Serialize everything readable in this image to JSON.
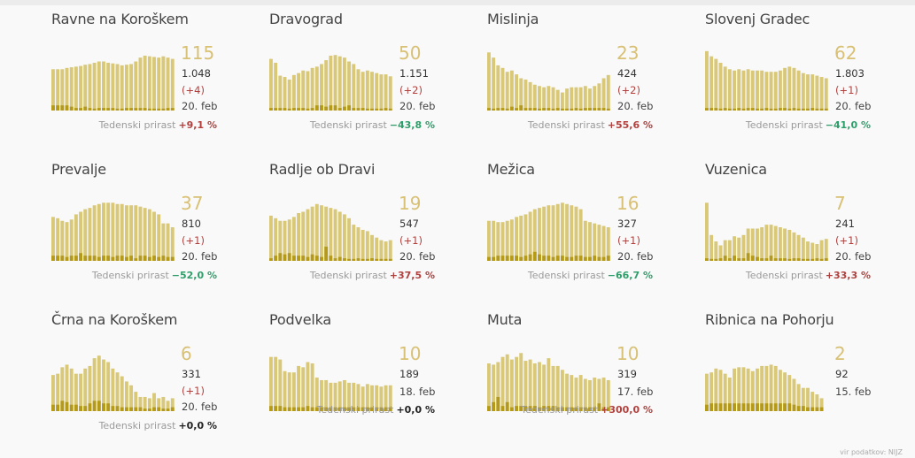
{
  "footnote": "vir podatkov: NIJZ",
  "colors": {
    "bar": "#d8c878",
    "bar_dark": "#b59a1a",
    "number": "#d8c074",
    "up": "#b0413e",
    "down": "#2e9e6a"
  },
  "chart_data": [
    {
      "type": "bar",
      "title": "Ravne na Koroškem",
      "active": "115",
      "total": "1.048",
      "daily": "(+4)",
      "date": "20. feb",
      "weekly_label": "Tedenski prirast",
      "weekly": "+9,1 %",
      "trend": "pos",
      "series": [
        {
          "name": "active",
          "values": [
            64,
            64,
            64,
            66,
            67,
            68,
            69,
            71,
            72,
            74,
            76,
            76,
            74,
            73,
            72,
            70,
            71,
            72,
            76,
            82,
            85,
            84,
            83,
            82,
            84,
            82,
            80
          ]
        },
        {
          "name": "new",
          "values": [
            8,
            8,
            8,
            8,
            6,
            4,
            4,
            6,
            4,
            3,
            4,
            4,
            4,
            4,
            3,
            3,
            4,
            4,
            4,
            4,
            4,
            3,
            3,
            3,
            3,
            4,
            4
          ]
        }
      ]
    },
    {
      "type": "bar",
      "title": "Dravograd",
      "active": "50",
      "total": "1.151",
      "daily": "(+2)",
      "date": "20. feb",
      "weekly_label": "Tedenski prirast",
      "weekly": "−43,8 %",
      "trend": "neg",
      "series": [
        {
          "name": "active",
          "values": [
            80,
            74,
            54,
            52,
            48,
            55,
            58,
            62,
            61,
            66,
            68,
            72,
            78,
            85,
            86,
            84,
            82,
            76,
            72,
            64,
            60,
            62,
            60,
            58,
            56,
            56,
            53
          ]
        },
        {
          "name": "new",
          "values": [
            4,
            4,
            4,
            4,
            3,
            4,
            4,
            4,
            3,
            4,
            8,
            8,
            6,
            8,
            8,
            4,
            6,
            8,
            4,
            4,
            4,
            3,
            3,
            3,
            3,
            4,
            3
          ]
        }
      ]
    },
    {
      "type": "bar",
      "title": "Mislinja",
      "active": "23",
      "total": "424",
      "daily": "(+2)",
      "date": "20. feb",
      "weekly_label": "Tedenski prirast",
      "weekly": "+55,6 %",
      "trend": "pos",
      "series": [
        {
          "name": "active",
          "values": [
            90,
            82,
            70,
            66,
            60,
            62,
            56,
            50,
            48,
            44,
            40,
            38,
            36,
            38,
            36,
            32,
            28,
            34,
            36,
            36,
            36,
            38,
            34,
            38,
            42,
            50,
            55
          ]
        },
        {
          "name": "new",
          "values": [
            4,
            3,
            4,
            4,
            3,
            6,
            4,
            8,
            4,
            4,
            4,
            3,
            4,
            4,
            3,
            4,
            3,
            3,
            3,
            4,
            3,
            4,
            4,
            4,
            4,
            4,
            3
          ]
        }
      ]
    },
    {
      "type": "bar",
      "title": "Slovenj Gradec",
      "active": "62",
      "total": "1.803",
      "daily": "(+1)",
      "date": "20. feb",
      "weekly_label": "Tedenski prirast",
      "weekly": "−41,0 %",
      "trend": "neg",
      "series": [
        {
          "name": "active",
          "values": [
            92,
            84,
            80,
            74,
            68,
            64,
            62,
            64,
            62,
            64,
            62,
            62,
            62,
            60,
            60,
            60,
            62,
            66,
            68,
            66,
            62,
            58,
            56,
            56,
            54,
            52,
            50
          ]
        },
        {
          "name": "new",
          "values": [
            4,
            4,
            4,
            3,
            4,
            3,
            3,
            4,
            3,
            4,
            4,
            3,
            3,
            4,
            3,
            3,
            4,
            4,
            3,
            4,
            3,
            3,
            3,
            4,
            3,
            3,
            3
          ]
        }
      ]
    },
    {
      "type": "bar",
      "title": "Prevalje",
      "active": "37",
      "total": "810",
      "daily": "(+1)",
      "date": "20. feb",
      "weekly_label": "Tedenski prirast",
      "weekly": "−52,0 %",
      "trend": "neg",
      "series": [
        {
          "name": "active",
          "values": [
            68,
            66,
            62,
            60,
            64,
            72,
            76,
            80,
            82,
            86,
            88,
            90,
            90,
            90,
            88,
            88,
            86,
            86,
            86,
            84,
            82,
            80,
            76,
            72,
            58,
            58,
            52
          ]
        },
        {
          "name": "new",
          "values": [
            8,
            8,
            8,
            6,
            8,
            8,
            12,
            8,
            8,
            8,
            6,
            8,
            8,
            6,
            8,
            8,
            6,
            8,
            4,
            8,
            8,
            6,
            8,
            6,
            8,
            6,
            6
          ]
        }
      ]
    },
    {
      "type": "bar",
      "title": "Radlje ob Dravi",
      "active": "19",
      "total": "547",
      "daily": "(+1)",
      "date": "20. feb",
      "weekly_label": "Tedenski prirast",
      "weekly": "+37,5 %",
      "trend": "pos",
      "series": [
        {
          "name": "active",
          "values": [
            70,
            66,
            62,
            62,
            64,
            68,
            74,
            76,
            80,
            84,
            88,
            86,
            84,
            82,
            80,
            76,
            72,
            66,
            56,
            52,
            48,
            46,
            40,
            36,
            32,
            30,
            32
          ]
        },
        {
          "name": "new",
          "values": [
            4,
            8,
            12,
            10,
            12,
            8,
            8,
            8,
            6,
            10,
            8,
            6,
            22,
            8,
            4,
            6,
            4,
            3,
            3,
            4,
            3,
            3,
            4,
            3,
            3,
            3,
            3
          ]
        }
      ]
    },
    {
      "type": "bar",
      "title": "Mežica",
      "active": "16",
      "total": "327",
      "daily": "(+1)",
      "date": "20. feb",
      "weekly_label": "Tedenski prirast",
      "weekly": "−66,7 %",
      "trend": "neg",
      "series": [
        {
          "name": "active",
          "values": [
            62,
            62,
            60,
            60,
            62,
            64,
            68,
            70,
            72,
            76,
            80,
            82,
            84,
            86,
            86,
            88,
            90,
            88,
            86,
            84,
            80,
            62,
            60,
            58,
            56,
            54,
            52
          ]
        },
        {
          "name": "new",
          "values": [
            6,
            6,
            8,
            8,
            8,
            8,
            8,
            6,
            8,
            10,
            14,
            10,
            8,
            8,
            6,
            8,
            8,
            6,
            6,
            8,
            8,
            6,
            6,
            8,
            6,
            6,
            8
          ]
        }
      ]
    },
    {
      "type": "bar",
      "title": "Vuzenica",
      "active": "7",
      "total": "241",
      "daily": "(+1)",
      "date": "20. feb",
      "weekly_label": "Tedenski prirast",
      "weekly": "+33,3 %",
      "trend": "pos",
      "series": [
        {
          "name": "active",
          "values": [
            90,
            40,
            30,
            24,
            32,
            32,
            38,
            36,
            40,
            50,
            50,
            50,
            52,
            56,
            56,
            54,
            52,
            50,
            48,
            44,
            40,
            36,
            30,
            28,
            26,
            32,
            34
          ]
        },
        {
          "name": "new",
          "values": [
            4,
            3,
            3,
            4,
            8,
            4,
            8,
            4,
            4,
            12,
            8,
            6,
            4,
            4,
            8,
            4,
            4,
            4,
            3,
            4,
            4,
            3,
            3,
            3,
            4,
            3,
            4
          ]
        }
      ]
    },
    {
      "type": "bar",
      "title": "Črna na Koroškem",
      "active": "6",
      "total": "331",
      "daily": "(+1)",
      "date": "20. feb",
      "weekly_label": "Tedenski prirast",
      "weekly": "+0,0 %",
      "trend": "zero",
      "series": [
        {
          "name": "active",
          "values": [
            56,
            58,
            68,
            72,
            66,
            58,
            58,
            66,
            70,
            82,
            86,
            80,
            76,
            66,
            60,
            54,
            46,
            40,
            30,
            22,
            22,
            20,
            28,
            20,
            22,
            16,
            20
          ]
        },
        {
          "name": "new",
          "values": [
            10,
            10,
            16,
            14,
            10,
            10,
            8,
            8,
            12,
            16,
            16,
            12,
            12,
            8,
            8,
            6,
            6,
            6,
            6,
            6,
            4,
            4,
            6,
            6,
            4,
            4,
            6
          ]
        }
      ]
    },
    {
      "type": "bar",
      "title": "Podvelka",
      "active": "10",
      "total": "189",
      "daily": "",
      "date": "18. feb",
      "weekly_label": "Tedenski prirast",
      "weekly": "+0,0 %",
      "trend": "zero",
      "series": [
        {
          "name": "active",
          "values": [
            84,
            84,
            80,
            62,
            60,
            60,
            70,
            68,
            76,
            74,
            52,
            48,
            48,
            44,
            44,
            46,
            48,
            44,
            44,
            42,
            38,
            42,
            40,
            40,
            38,
            40,
            40
          ]
        },
        {
          "name": "new",
          "values": [
            8,
            8,
            8,
            6,
            6,
            6,
            6,
            6,
            8,
            6,
            6,
            6,
            6,
            6,
            6,
            6,
            6,
            6,
            6,
            6,
            6,
            6,
            6,
            6,
            6,
            6,
            6
          ]
        }
      ]
    },
    {
      "type": "bar",
      "title": "Muta",
      "active": "10",
      "total": "319",
      "daily": "",
      "date": "17. feb",
      "weekly_label": "Tedenski prirast",
      "weekly": "+300,0 %",
      "trend": "pos",
      "series": [
        {
          "name": "active",
          "values": [
            74,
            72,
            76,
            84,
            88,
            80,
            84,
            90,
            78,
            80,
            74,
            76,
            72,
            82,
            70,
            70,
            64,
            58,
            56,
            52,
            56,
            50,
            48,
            52,
            50,
            52,
            48
          ]
        },
        {
          "name": "new",
          "values": [
            8,
            14,
            22,
            8,
            14,
            6,
            8,
            8,
            8,
            8,
            8,
            6,
            8,
            8,
            8,
            6,
            6,
            6,
            6,
            6,
            6,
            6,
            6,
            6,
            12,
            6,
            6
          ]
        }
      ]
    },
    {
      "type": "bar",
      "title": "Ribnica na Pohorju",
      "active": "2",
      "total": "92",
      "daily": "",
      "date": "15. feb",
      "weekly_label": "",
      "weekly": "",
      "trend": "",
      "series": [
        {
          "name": "active",
          "values": [
            58,
            60,
            66,
            64,
            58,
            52,
            66,
            68,
            68,
            66,
            62,
            66,
            70,
            70,
            72,
            70,
            64,
            60,
            56,
            50,
            42,
            36,
            36,
            30,
            26,
            20
          ]
        },
        {
          "name": "new",
          "values": [
            10,
            12,
            12,
            12,
            12,
            12,
            12,
            12,
            12,
            12,
            12,
            12,
            12,
            12,
            12,
            12,
            12,
            12,
            12,
            10,
            8,
            8,
            6,
            6,
            6,
            6
          ]
        }
      ]
    }
  ]
}
